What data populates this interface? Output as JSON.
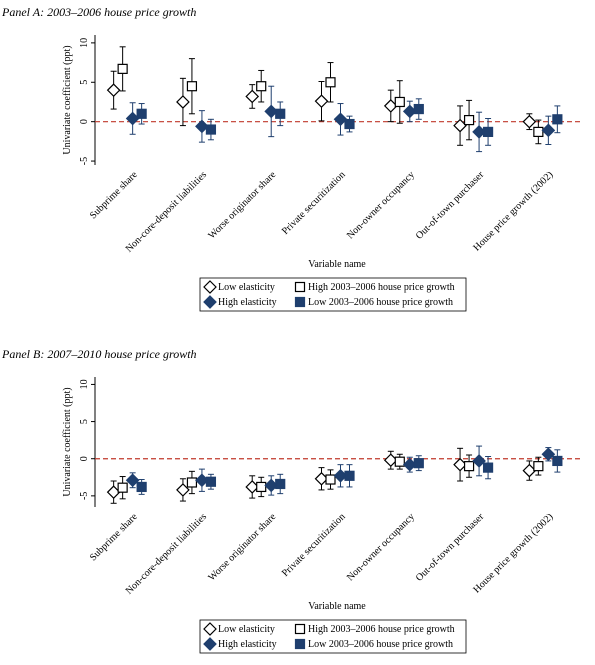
{
  "chart_data": [
    {
      "type": "scatter",
      "title": "Panel A: 2003–2006 house price growth",
      "ylabel": "Univariate coefficient (ppt)",
      "xlabel": "Variable name",
      "categories": [
        "Subprime share",
        "Non-core-deposit liabilities",
        "Worse originator share",
        "Private securitization",
        "Non-owner occupancy",
        "Out-of-town purchaser",
        "House price growth (2002)"
      ],
      "ylim": [
        -5.5,
        11
      ],
      "yticks": [
        -5,
        0,
        5,
        10
      ],
      "hline": 0,
      "hline_color": "#c0392b",
      "series": [
        {
          "name": "Low elasticity",
          "marker": "diamond-open",
          "color": "#000000",
          "values": [
            4,
            2.5,
            3.2,
            2.6,
            2,
            -0.5,
            0
          ],
          "errors": [
            2.4,
            3,
            1.5,
            2.5,
            2,
            2.5,
            1
          ]
        },
        {
          "name": "High 2003–2006 house price growth",
          "marker": "square-open",
          "color": "#000000",
          "values": [
            6.7,
            4.5,
            4.5,
            5,
            2.5,
            0.2,
            -1.3
          ],
          "errors": [
            2.8,
            3.5,
            2,
            2.5,
            2.7,
            2.5,
            1.5
          ]
        },
        {
          "name": "High elasticity",
          "marker": "diamond",
          "color": "#1f3f6e",
          "values": [
            0.4,
            -0.6,
            1.3,
            0.3,
            1.3,
            -1.3,
            -1.1
          ],
          "errors": [
            2,
            2,
            3.2,
            2,
            1.3,
            2.5,
            1.8
          ]
        },
        {
          "name": "Low 2003–2006 house price growth",
          "marker": "square",
          "color": "#1f3f6e",
          "values": [
            1,
            -1,
            1,
            -0.3,
            1.6,
            -1.3,
            0.3
          ],
          "errors": [
            1.3,
            1.3,
            1.5,
            1,
            1.3,
            1.7,
            1.7
          ]
        }
      ]
    },
    {
      "type": "scatter",
      "title": "Panel B: 2007–2010 house price growth",
      "ylabel": "Univariate coefficient (ppt)",
      "xlabel": "Variable name",
      "categories": [
        "Subprime share",
        "Non-core-deposit liabilities",
        "Worse originator share",
        "Private securitization",
        "Non-owner occupancy",
        "Out-of-town purchaser",
        "House price growth (2002)"
      ],
      "ylim": [
        -6.5,
        11
      ],
      "yticks": [
        -5,
        0,
        5,
        10
      ],
      "hline": 0,
      "hline_color": "#c0392b",
      "series": [
        {
          "name": "Low elasticity",
          "marker": "diamond-open",
          "color": "#000000",
          "values": [
            -4.5,
            -4.2,
            -3.8,
            -2.7,
            -0.2,
            -0.8,
            -1.6
          ],
          "errors": [
            1.5,
            1.5,
            1.5,
            1.5,
            1.2,
            2.2,
            1.3
          ]
        },
        {
          "name": "High 2003–2006 house price growth",
          "marker": "square-open",
          "color": "#000000",
          "values": [
            -3.9,
            -3.2,
            -3.8,
            -2.8,
            -0.4,
            -1,
            -1
          ],
          "errors": [
            1.5,
            1.5,
            1.3,
            1.3,
            1,
            1.5,
            1.2
          ]
        },
        {
          "name": "High elasticity",
          "marker": "diamond",
          "color": "#1f3f6e",
          "values": [
            -2.9,
            -2.9,
            -3.6,
            -2.3,
            -0.8,
            -0.3,
            0.6
          ],
          "errors": [
            1,
            1.5,
            1.3,
            1.5,
            1,
            2,
            0.9
          ]
        },
        {
          "name": "Low 2003–2006 house price growth",
          "marker": "square",
          "color": "#1f3f6e",
          "values": [
            -3.8,
            -3.1,
            -3.4,
            -2.3,
            -0.6,
            -1.2,
            -0.3
          ],
          "errors": [
            1,
            1,
            1.3,
            1.5,
            1,
            1.5,
            1.5
          ]
        }
      ]
    }
  ]
}
